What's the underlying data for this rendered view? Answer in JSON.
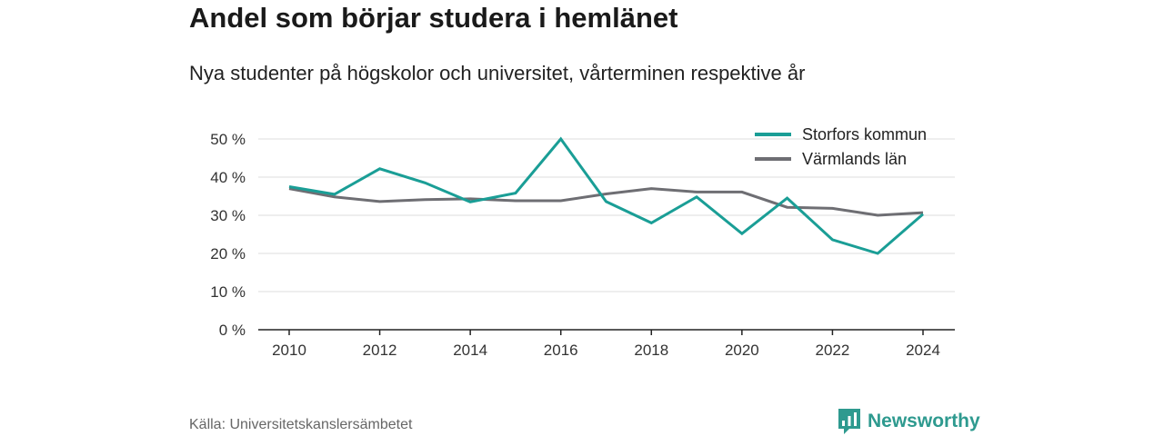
{
  "title": "Andel som börjar studera i hemlänet",
  "subtitle": "Nya studenter på högskolor och universitet, vårterminen respektive år",
  "source": "Källa: Universitetskanslersämbetet",
  "brand": {
    "name": "Newsworthy",
    "icon": "bar-chart-icon",
    "color": "#2e9a8f"
  },
  "chart_data": {
    "type": "line",
    "x": [
      2010,
      2011,
      2012,
      2013,
      2014,
      2015,
      2016,
      2017,
      2018,
      2019,
      2020,
      2021,
      2022,
      2023,
      2024
    ],
    "x_ticks": [
      "2010",
      "2012",
      "2014",
      "2016",
      "2018",
      "2020",
      "2022",
      "2024"
    ],
    "y_ticks": [
      "0 %",
      "10 %",
      "20 %",
      "30 %",
      "40 %",
      "50 %"
    ],
    "ylim": [
      0,
      50
    ],
    "grid": true,
    "legend_position": "top-right",
    "series": [
      {
        "name": "Storfors kommun",
        "color": "#1a9e96",
        "values": [
          37.5,
          35.5,
          42.2,
          38.5,
          33.5,
          35.8,
          50.0,
          33.6,
          28.0,
          34.8,
          25.2,
          34.5,
          23.6,
          20.0,
          30.3
        ]
      },
      {
        "name": "Värmlands län",
        "color": "#6e6e73",
        "values": [
          37.0,
          34.8,
          33.6,
          34.1,
          34.3,
          33.8,
          33.8,
          35.6,
          37.0,
          36.1,
          36.1,
          32.1,
          31.8,
          30.0,
          30.7
        ]
      }
    ]
  }
}
